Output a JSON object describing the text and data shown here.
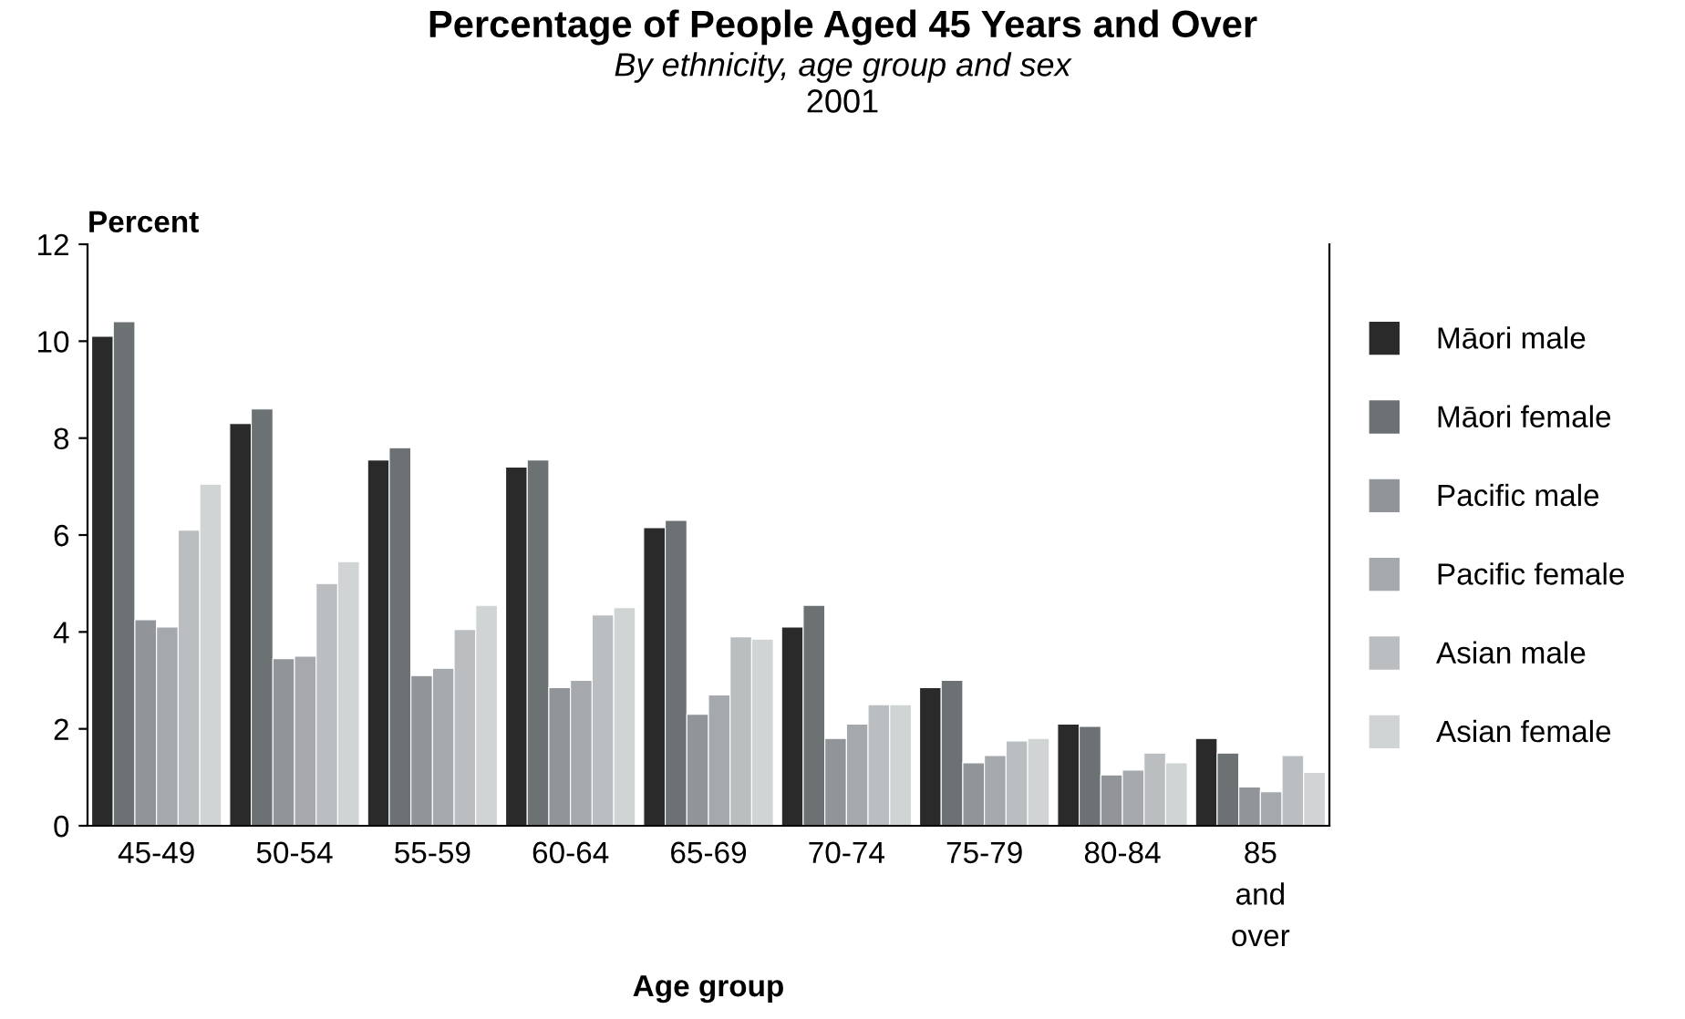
{
  "chart_data": {
    "type": "bar",
    "title": "Percentage of People Aged 45 Years and Over",
    "subtitle": "By ethnicity, age group and sex",
    "annotations": [
      "2001"
    ],
    "xlabel": "Age group",
    "ylabel": "Percent",
    "categories": [
      "45-49",
      "50-54",
      "55-59",
      "60-64",
      "65-69",
      "70-74",
      "75-79",
      "80-84",
      "85\nand\nover"
    ],
    "series": [
      {
        "name": "Māori male",
        "color": "#2b2a2b",
        "values": [
          10.1,
          8.3,
          7.55,
          7.4,
          6.15,
          4.1,
          2.85,
          2.1,
          1.8
        ]
      },
      {
        "name": "Māori female",
        "color": "#6c7173",
        "values": [
          10.4,
          8.6,
          7.8,
          7.55,
          6.3,
          4.55,
          3.0,
          2.05,
          1.5
        ]
      },
      {
        "name": "Pacific male",
        "color": "#919599",
        "values": [
          4.25,
          3.45,
          3.1,
          2.85,
          2.3,
          1.8,
          1.3,
          1.05,
          0.8
        ]
      },
      {
        "name": "Pacific female",
        "color": "#a5a8ac",
        "values": [
          4.1,
          3.5,
          3.25,
          3.0,
          2.7,
          2.1,
          1.45,
          1.15,
          0.7
        ]
      },
      {
        "name": "Asian male",
        "color": "#bbbec1",
        "values": [
          6.1,
          5.0,
          4.05,
          4.35,
          3.9,
          2.5,
          1.75,
          1.5,
          1.45
        ]
      },
      {
        "name": "Asian female",
        "color": "#d1d4d5",
        "values": [
          7.05,
          5.45,
          4.55,
          4.5,
          3.85,
          2.5,
          1.8,
          1.3,
          1.1
        ]
      }
    ],
    "ylim": [
      0,
      12
    ],
    "yticks": [
      0,
      2,
      4,
      6,
      8,
      10,
      12
    ],
    "legend": "right",
    "grid": false
  }
}
